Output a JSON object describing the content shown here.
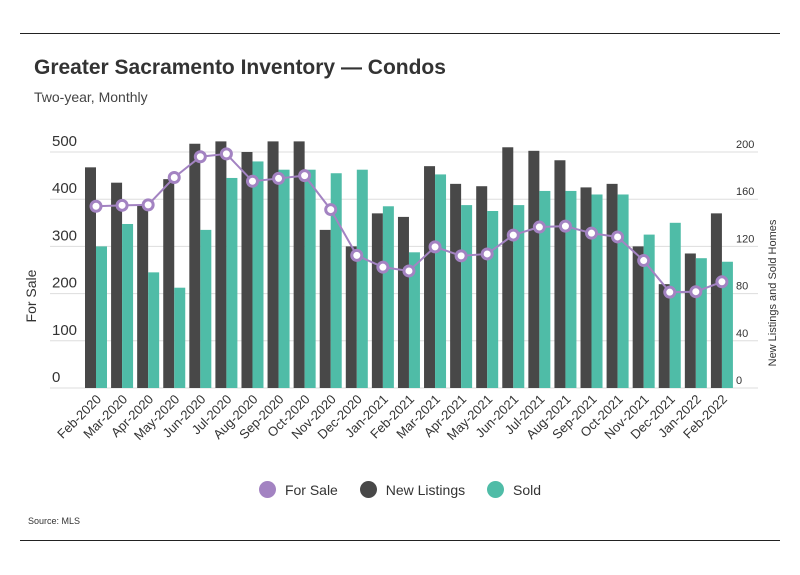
{
  "header": {
    "title": "Greater Sacramento Inventory — Condos",
    "subtitle": "Two-year, Monthly"
  },
  "source": "Source:  MLS",
  "legend": {
    "for_sale": "For Sale",
    "new_listings": "New Listings",
    "sold": "Sold"
  },
  "colors": {
    "for_sale": "#a383c2",
    "new_listings": "#484848",
    "sold": "#4fbca7",
    "grid": "#dddddd"
  },
  "chart_data": {
    "type": "bar",
    "categories": [
      "Feb-2020",
      "Mar-2020",
      "Apr-2020",
      "May-2020",
      "Jun-2020",
      "Jul-2020",
      "Aug-2020",
      "Sep-2020",
      "Oct-2020",
      "Nov-2020",
      "Dec-2020",
      "Jan-2021",
      "Feb-2021",
      "Mar-2021",
      "Apr-2021",
      "May-2021",
      "Jun-2021",
      "Jul-2021",
      "Aug-2021",
      "Sep-2021",
      "Oct-2021",
      "Nov-2021",
      "Dec-2021",
      "Jan-2022",
      "Feb-2022"
    ],
    "y_left_label": "For Sale",
    "y_left_lim": [
      0,
      500
    ],
    "y_left_ticks": [
      0,
      100,
      200,
      300,
      400,
      500
    ],
    "y_right_label": "New Listings and Sold Homes",
    "y_right_lim": [
      0,
      200
    ],
    "y_right_ticks": [
      0,
      40,
      80,
      120,
      160,
      200
    ],
    "series": [
      {
        "name": "New Listings",
        "type": "bar",
        "axis": "right",
        "values": [
          187,
          174,
          155,
          177,
          207,
          209,
          200,
          209,
          209,
          134,
          120,
          148,
          145,
          188,
          173,
          171,
          204,
          201,
          193,
          170,
          173,
          120,
          88,
          114,
          148
        ]
      },
      {
        "name": "Sold",
        "type": "bar",
        "axis": "right",
        "values": [
          120,
          139,
          98,
          85,
          134,
          178,
          192,
          185,
          185,
          182,
          185,
          154,
          115,
          181,
          155,
          150,
          155,
          167,
          167,
          164,
          164,
          130,
          140,
          110,
          107
        ]
      },
      {
        "name": "For Sale",
        "type": "line",
        "axis": "left",
        "values": [
          385,
          387,
          388,
          446,
          490,
          496,
          438,
          444,
          450,
          378,
          281,
          256,
          248,
          299,
          280,
          284,
          324,
          341,
          343,
          328,
          320,
          270,
          203,
          204,
          225
        ]
      }
    ]
  }
}
